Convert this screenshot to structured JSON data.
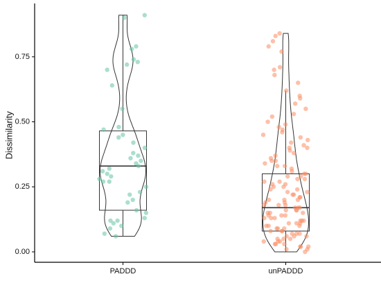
{
  "chart_data": {
    "type": "violin",
    "ylabel": "Dissimilarity",
    "categories": [
      "PADDD",
      "unPADDD"
    ],
    "ylim": [
      -0.04,
      0.955
    ],
    "yticks": [
      {
        "value": 0,
        "label": "0.00"
      },
      {
        "value": 0.25,
        "label": "0.25"
      },
      {
        "value": 0.5,
        "label": "0.50"
      },
      {
        "value": 0.75,
        "label": "0.75"
      }
    ],
    "groups": [
      {
        "color": "#66c2a5",
        "box": {
          "whisker_low": 0.06,
          "q1": 0.16,
          "median": 0.33,
          "q3": 0.465,
          "whisker_high": 0.91
        },
        "values": [
          0.91,
          0.9,
          0.79,
          0.78,
          0.74,
          0.73,
          0.72,
          0.7,
          0.64,
          0.55,
          0.48,
          0.47,
          0.45,
          0.44,
          0.42,
          0.4,
          0.38,
          0.37,
          0.36,
          0.35,
          0.34,
          0.33,
          0.32,
          0.31,
          0.3,
          0.29,
          0.28,
          0.27,
          0.27,
          0.25,
          0.23,
          0.22,
          0.2,
          0.19,
          0.16,
          0.15,
          0.13,
          0.12,
          0.12,
          0.11,
          0.1,
          0.09,
          0.07,
          0.06
        ]
      },
      {
        "color": "#fc8d62",
        "box": {
          "whisker_low": 0.0,
          "q1": 0.08,
          "median": 0.17,
          "q3": 0.3,
          "whisker_high": 0.62
        },
        "values": [
          0.84,
          0.83,
          0.81,
          0.79,
          0.77,
          0.71,
          0.7,
          0.68,
          0.65,
          0.62,
          0.6,
          0.59,
          0.57,
          0.55,
          0.53,
          0.52,
          0.5,
          0.49,
          0.48,
          0.47,
          0.46,
          0.45,
          0.44,
          0.43,
          0.42,
          0.41,
          0.4,
          0.4,
          0.39,
          0.38,
          0.37,
          0.36,
          0.35,
          0.35,
          0.34,
          0.33,
          0.33,
          0.32,
          0.31,
          0.3,
          0.3,
          0.29,
          0.29,
          0.28,
          0.28,
          0.27,
          0.27,
          0.26,
          0.26,
          0.25,
          0.25,
          0.24,
          0.24,
          0.23,
          0.23,
          0.22,
          0.22,
          0.21,
          0.21,
          0.2,
          0.2,
          0.2,
          0.19,
          0.19,
          0.18,
          0.18,
          0.18,
          0.17,
          0.17,
          0.17,
          0.16,
          0.16,
          0.16,
          0.15,
          0.15,
          0.15,
          0.14,
          0.14,
          0.14,
          0.13,
          0.13,
          0.13,
          0.12,
          0.12,
          0.12,
          0.11,
          0.11,
          0.11,
          0.1,
          0.1,
          0.1,
          0.09,
          0.09,
          0.09,
          0.08,
          0.08,
          0.08,
          0.07,
          0.07,
          0.07,
          0.06,
          0.06,
          0.06,
          0.05,
          0.05,
          0.05,
          0.04,
          0.04,
          0.04,
          0.03,
          0.03,
          0.03,
          0.02,
          0.02,
          0.02,
          0.01,
          0.01,
          0.0
        ]
      }
    ]
  }
}
